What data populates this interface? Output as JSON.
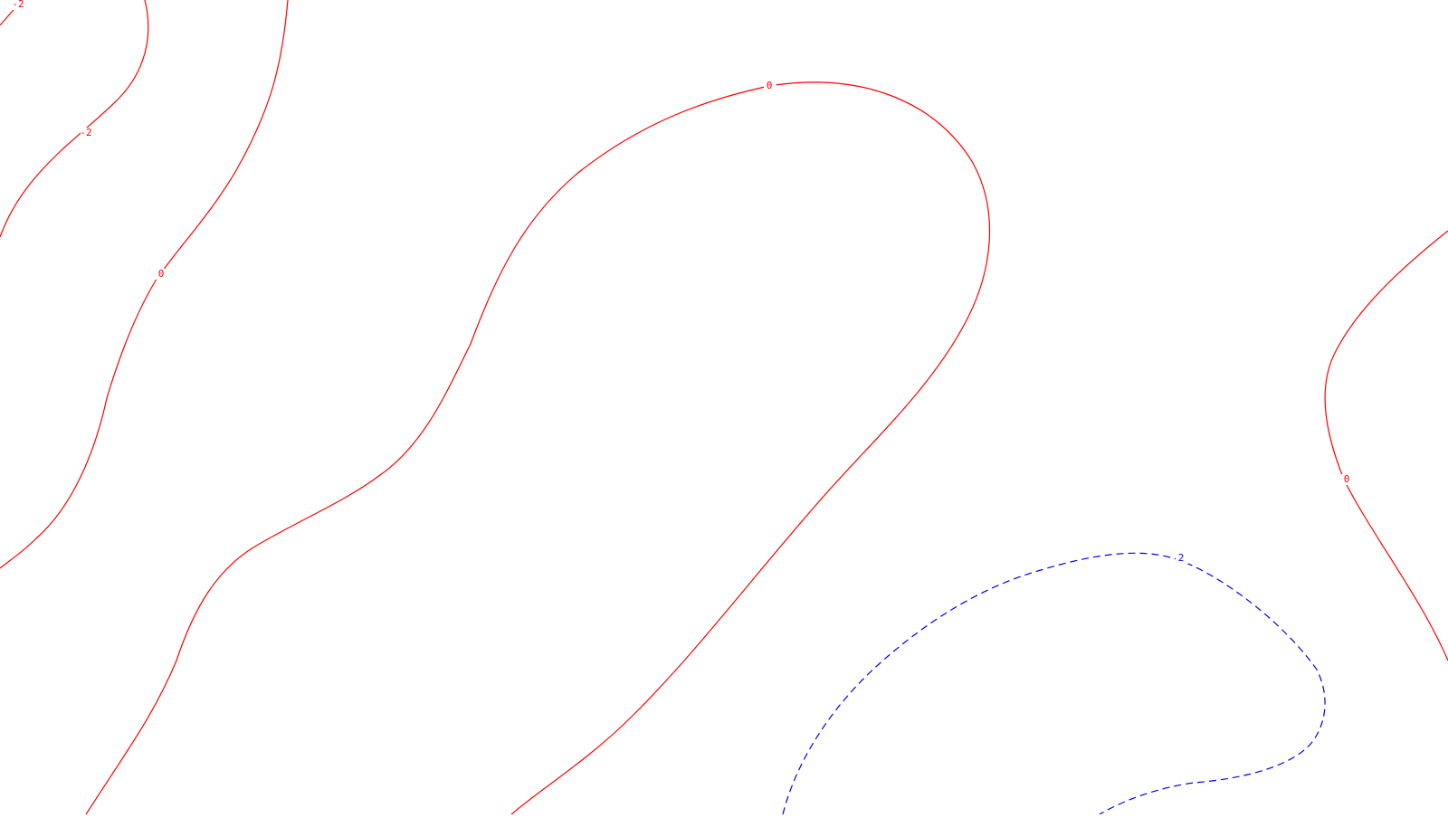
{
  "chart_data": {
    "type": "contour",
    "title": "",
    "xlabel": "",
    "ylabel": "",
    "grid": false,
    "legend": "none",
    "levels": [
      {
        "value": -2,
        "label": "-2",
        "color": "#ff0000",
        "style": "solid"
      },
      {
        "value": 0,
        "label": "0",
        "color": "#ff0000",
        "style": "solid"
      },
      {
        "value": 2,
        "label": "2",
        "color": "#0000ff",
        "style": "dashed"
      }
    ],
    "contour_labels": [
      {
        "level": -2,
        "text": "-2"
      },
      {
        "level": -2,
        "text": "-2"
      },
      {
        "level": 0,
        "text": "0"
      },
      {
        "level": 0,
        "text": "0"
      },
      {
        "level": 0,
        "text": "0"
      },
      {
        "level": 2,
        "text": "2"
      }
    ]
  }
}
